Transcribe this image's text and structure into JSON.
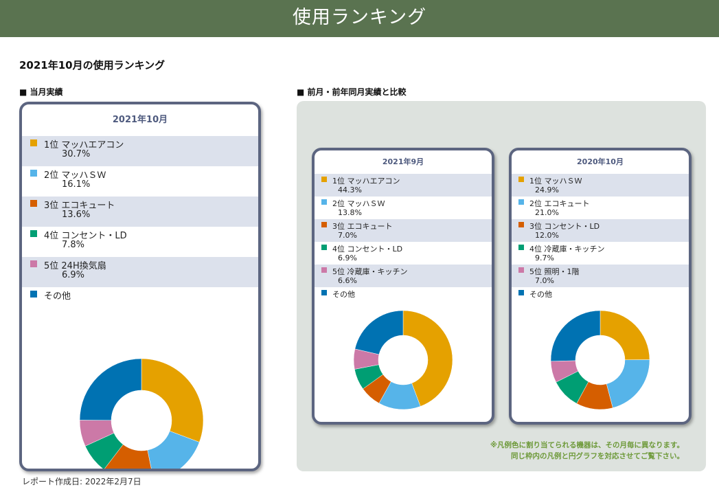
{
  "header": {
    "title": "使用ランキング"
  },
  "report_title": "2021年10月の使用ランキング",
  "sections": {
    "current": "■ 当月実績",
    "compare": "■ 前月・前年同月実績と比較"
  },
  "note": {
    "line1": "※凡例色に割り当てられる機器は、その月毎に異なります。",
    "line2": "同じ枠内の凡例と円グラフを対応させてご覧下さい。"
  },
  "footer": {
    "created": "レポート作成日: 2022年2月7日"
  },
  "colors": {
    "header_bg": "#5a7350",
    "card_border": "#5c6580",
    "panel_bg": "#dde2de",
    "row_shade": "#dce1ec"
  },
  "chart_data": [
    {
      "type": "pie",
      "title": "2021年10月",
      "legend": [
        {
          "label": "1位 マッハエアコン",
          "value_text": "30.7%",
          "color": "#e5a100"
        },
        {
          "label": "2位 マッハＳＷ",
          "value_text": "16.1%",
          "color": "#56b4e9"
        },
        {
          "label": "3位 エコキュート",
          "value_text": "13.6%",
          "color": "#d55e00"
        },
        {
          "label": "4位 コンセント・LD",
          "value_text": "7.8%",
          "color": "#009e73"
        },
        {
          "label": "5位 24H換気扇",
          "value_text": "6.9%",
          "color": "#cc79a7"
        },
        {
          "label": "その他",
          "value_text": "",
          "color": "#0072b2"
        }
      ],
      "values": [
        30.7,
        16.1,
        13.6,
        7.8,
        6.9,
        24.9
      ]
    },
    {
      "type": "pie",
      "title": "2021年9月",
      "legend": [
        {
          "label": "1位 マッハエアコン",
          "value_text": "44.3%",
          "color": "#e5a100"
        },
        {
          "label": "2位 マッハＳＷ",
          "value_text": "13.8%",
          "color": "#56b4e9"
        },
        {
          "label": "3位 エコキュート",
          "value_text": "7.0%",
          "color": "#d55e00"
        },
        {
          "label": "4位 コンセント・LD",
          "value_text": "6.9%",
          "color": "#009e73"
        },
        {
          "label": "5位 冷蔵庫・キッチン",
          "value_text": "6.6%",
          "color": "#cc79a7"
        },
        {
          "label": "その他",
          "value_text": "",
          "color": "#0072b2"
        }
      ],
      "values": [
        44.3,
        13.8,
        7.0,
        6.9,
        6.6,
        21.4
      ]
    },
    {
      "type": "pie",
      "title": "2020年10月",
      "legend": [
        {
          "label": "1位 マッハＳＷ",
          "value_text": "24.9%",
          "color": "#e5a100"
        },
        {
          "label": "2位 エコキュート",
          "value_text": "21.0%",
          "color": "#56b4e9"
        },
        {
          "label": "3位 コンセント・LD",
          "value_text": "12.0%",
          "color": "#d55e00"
        },
        {
          "label": "4位 冷蔵庫・キッチン",
          "value_text": "9.7%",
          "color": "#009e73"
        },
        {
          "label": "5位 照明・1階",
          "value_text": "7.0%",
          "color": "#cc79a7"
        },
        {
          "label": "その他",
          "value_text": "",
          "color": "#0072b2"
        }
      ],
      "values": [
        24.9,
        21.0,
        12.0,
        9.7,
        7.0,
        25.4
      ]
    }
  ]
}
